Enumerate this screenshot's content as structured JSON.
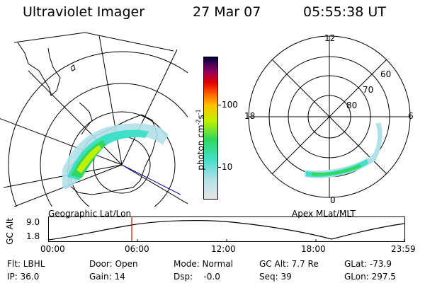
{
  "header": {
    "instrument": "Ultraviolet Imager",
    "date": "27 Mar 07",
    "time": "05:55:38 UT"
  },
  "left_panel": {
    "caption": "Geographic Lat/Lon"
  },
  "right_panel": {
    "caption": "Apex MLat/MLT",
    "hour_labels": [
      "12",
      "18",
      "6",
      "0"
    ],
    "lat_labels": [
      "60",
      "70",
      "80"
    ]
  },
  "colorbar": {
    "unit_label": "photon cm",
    "unit_sup1": "-2",
    "unit_mid": "s",
    "unit_sup2": "-1",
    "ticks": [
      "100",
      "10"
    ],
    "scale": "log",
    "colors": [
      "#e6e6e6",
      "#b0e0e8",
      "#40e0c8",
      "#30d860",
      "#c0f000",
      "#ffc000",
      "#ff6000",
      "#e00000",
      "#900060",
      "#000040"
    ]
  },
  "altitude_plot": {
    "ylabel": "GC Alt",
    "yticks": [
      "9.0",
      "1.8"
    ],
    "xticks": [
      "00:00",
      "06:00",
      "12:00",
      "18:00",
      "23:59"
    ],
    "marker_color": "#ff0000"
  },
  "status": {
    "filter": "Flt: LBHL",
    "ip": "IP: 36.0",
    "door": "Door: Open",
    "gain": "Gain: 14",
    "mode": "Mode: Normal",
    "dsp": "Dsp:    -0.0",
    "gc_alt": "GC Alt: 7.7 Re",
    "seq": "Seq: 39",
    "glat": "GLat: -73.9",
    "glon": "GLon: 297.5"
  }
}
